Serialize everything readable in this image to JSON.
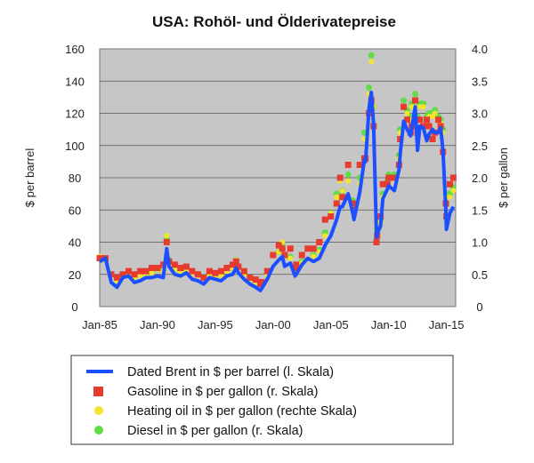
{
  "chart_data": {
    "type": "line",
    "title": "USA: Rohöl- und Ölderivatepreise",
    "ylabel_left": "$ per barrel",
    "ylabel_right": "$ per gallon",
    "ylim_left": [
      0,
      160
    ],
    "ylim_right": [
      0,
      4
    ],
    "yticks_left": [
      "0",
      "20",
      "40",
      "60",
      "80",
      "100",
      "120",
      "140",
      "160"
    ],
    "yticks_right": [
      "0",
      "0.5",
      "1.0",
      "1.5",
      "2.0",
      "2.5",
      "3.0",
      "3.5",
      "4.0"
    ],
    "xlim": [
      1985,
      2015.8
    ],
    "xticks": [
      {
        "label": "Jan-85",
        "year": 1985
      },
      {
        "label": "Jan-90",
        "year": 1990
      },
      {
        "label": "Jan-95",
        "year": 1995
      },
      {
        "label": "Jan-00",
        "year": 2000
      },
      {
        "label": "Jan-05",
        "year": 2005
      },
      {
        "label": "Jan-10",
        "year": 2010
      },
      {
        "label": "Jan-15",
        "year": 2015
      }
    ],
    "grid": true,
    "legend_position": "bottom",
    "x": [
      1985.0,
      1985.5,
      1986.0,
      1986.5,
      1987.0,
      1987.5,
      1988.0,
      1988.5,
      1989.0,
      1989.5,
      1990.0,
      1990.5,
      1990.8,
      1991.0,
      1991.5,
      1992.0,
      1992.5,
      1993.0,
      1993.5,
      1994.0,
      1994.5,
      1995.0,
      1995.5,
      1996.0,
      1996.5,
      1996.8,
      1997.0,
      1997.5,
      1998.0,
      1998.5,
      1998.9,
      1999.0,
      1999.5,
      2000.0,
      2000.5,
      2000.8,
      2001.0,
      2001.5,
      2001.9,
      2002.0,
      2002.5,
      2003.0,
      2003.5,
      2004.0,
      2004.5,
      2005.0,
      2005.5,
      2005.8,
      2006.0,
      2006.5,
      2006.9,
      2007.0,
      2007.5,
      2007.9,
      2008.0,
      2008.3,
      2008.5,
      2008.7,
      2008.95,
      2009.0,
      2009.3,
      2009.5,
      2009.9,
      2010.0,
      2010.5,
      2010.9,
      2011.0,
      2011.3,
      2011.6,
      2011.9,
      2012.0,
      2012.3,
      2012.5,
      2012.7,
      2013.0,
      2013.3,
      2013.5,
      2013.8,
      2014.0,
      2014.3,
      2014.5,
      2014.7,
      2014.95,
      2015.0,
      2015.3,
      2015.6
    ],
    "series": [
      {
        "name": "Dated Brent in $ per barrel (l. Skala)",
        "axis": "left",
        "color": "#1b4fff",
        "values": [
          28,
          30,
          15,
          12,
          18,
          19,
          15,
          16,
          18,
          18,
          19,
          18,
          36,
          25,
          20,
          19,
          21,
          17,
          16,
          14,
          18,
          17,
          16,
          19,
          20,
          24,
          21,
          17,
          14,
          12,
          10,
          11,
          17,
          25,
          29,
          31,
          25,
          27,
          19,
          20,
          26,
          30,
          28,
          30,
          38,
          44,
          54,
          62,
          62,
          70,
          58,
          54,
          71,
          91,
          90,
          123,
          133,
          113,
          43,
          45,
          50,
          67,
          73,
          75,
          72,
          85,
          95,
          115,
          110,
          106,
          111,
          124,
          97,
          112,
          111,
          103,
          107,
          110,
          108,
          108,
          111,
          97,
          60,
          48,
          58,
          62
        ]
      },
      {
        "name": "Gasoline in $ per gallon (r. Skala)",
        "axis": "right",
        "color": "#e63b2e",
        "values": [
          0.75,
          0.75,
          0.5,
          0.45,
          0.5,
          0.55,
          0.5,
          0.55,
          0.55,
          0.6,
          0.6,
          0.65,
          1.0,
          0.7,
          0.65,
          0.6,
          0.62,
          0.55,
          0.5,
          0.45,
          0.55,
          0.52,
          0.55,
          0.6,
          0.65,
          0.7,
          0.62,
          0.55,
          0.45,
          0.42,
          0.35,
          0.38,
          0.55,
          0.8,
          0.95,
          0.9,
          0.8,
          0.9,
          0.6,
          0.65,
          0.8,
          0.9,
          0.9,
          1.0,
          1.35,
          1.4,
          1.6,
          2.0,
          1.7,
          2.2,
          1.6,
          1.5,
          2.2,
          2.3,
          2.3,
          3.0,
          3.2,
          2.8,
          1.0,
          1.1,
          1.4,
          1.9,
          1.9,
          2.0,
          2.0,
          2.2,
          2.6,
          3.1,
          2.9,
          2.7,
          2.8,
          3.2,
          2.7,
          2.9,
          2.8,
          2.9,
          2.8,
          2.6,
          2.7,
          2.9,
          2.8,
          2.4,
          1.6,
          1.4,
          1.9,
          2.0
        ]
      },
      {
        "name": "Heating oil in $ per gallon (rechte Skala)",
        "axis": "right",
        "color": "#f2e52b",
        "values": [
          0.78,
          0.72,
          0.48,
          0.4,
          0.5,
          0.52,
          0.45,
          0.48,
          0.5,
          0.52,
          0.58,
          0.55,
          1.1,
          0.7,
          0.58,
          0.55,
          0.57,
          0.52,
          0.48,
          0.45,
          0.5,
          0.48,
          0.48,
          0.55,
          0.6,
          0.72,
          0.6,
          0.5,
          0.42,
          0.38,
          0.32,
          0.35,
          0.5,
          0.82,
          0.85,
          1.0,
          0.78,
          0.75,
          0.55,
          0.55,
          0.68,
          0.9,
          0.78,
          0.85,
          1.1,
          1.45,
          1.7,
          1.95,
          1.8,
          1.95,
          1.6,
          1.55,
          1.9,
          2.6,
          2.6,
          3.3,
          3.8,
          3.1,
          1.2,
          1.3,
          1.3,
          1.7,
          1.9,
          2.0,
          2.0,
          2.3,
          2.7,
          3.1,
          3.0,
          2.9,
          3.1,
          3.2,
          2.9,
          3.1,
          3.1,
          2.9,
          2.95,
          2.95,
          3.0,
          2.9,
          2.85,
          2.7,
          1.7,
          1.6,
          1.7,
          1.8
        ]
      },
      {
        "name": "Diesel in $ per gallon (r. Skala)",
        "axis": "right",
        "color": "#5fdc46",
        "values": [
          0.75,
          0.72,
          0.5,
          0.42,
          0.5,
          0.52,
          0.46,
          0.5,
          0.52,
          0.54,
          0.58,
          0.56,
          1.05,
          0.72,
          0.58,
          0.56,
          0.58,
          0.53,
          0.5,
          0.46,
          0.52,
          0.5,
          0.5,
          0.57,
          0.62,
          0.72,
          0.62,
          0.52,
          0.44,
          0.4,
          0.34,
          0.36,
          0.52,
          0.8,
          0.85,
          0.98,
          0.78,
          0.77,
          0.55,
          0.56,
          0.7,
          0.9,
          0.8,
          0.88,
          1.15,
          1.45,
          1.75,
          2.0,
          1.8,
          2.05,
          1.65,
          1.6,
          2.0,
          2.7,
          2.7,
          3.4,
          3.9,
          3.1,
          1.2,
          1.3,
          1.35,
          1.75,
          1.95,
          2.05,
          2.05,
          2.35,
          2.75,
          3.2,
          3.05,
          2.95,
          3.15,
          3.3,
          2.95,
          3.15,
          3.15,
          2.95,
          3.0,
          3.0,
          3.05,
          2.95,
          2.9,
          2.75,
          1.75,
          1.6,
          1.75,
          1.85
        ]
      }
    ]
  }
}
